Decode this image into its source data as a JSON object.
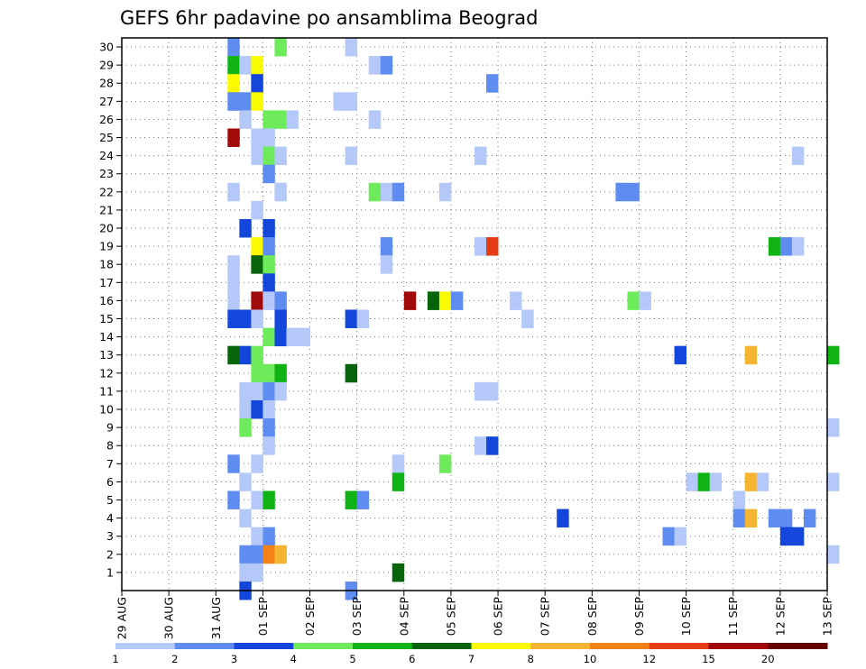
{
  "chart_data": {
    "type": "heatmap",
    "title": "GEFS 6hr padavine po ansamblima Beograd",
    "xlabel": "",
    "ylabel": "",
    "x_ticks": [
      "29 AUG",
      "30 AUG",
      "31 AUG",
      "01 SEP",
      "02 SEP",
      "03 SEP",
      "04 SEP",
      "05 SEP",
      "06 SEP",
      "07 SEP",
      "08 SEP",
      "09 SEP",
      "10 SEP",
      "11 SEP",
      "12 SEP",
      "13 SEP"
    ],
    "y_ticks": [
      "1",
      "2",
      "3",
      "4",
      "5",
      "6",
      "7",
      "8",
      "9",
      "10",
      "11",
      "12",
      "13",
      "14",
      "15",
      "16",
      "17",
      "18",
      "19",
      "20",
      "21",
      "22",
      "23",
      "24",
      "25",
      "26",
      "27",
      "28",
      "29",
      "30"
    ],
    "x_range": [
      "29 AUG 00Z",
      "13 SEP 00Z"
    ],
    "y_range": [
      0,
      30
    ],
    "grid": "dotted",
    "colorbar_levels": [
      "1",
      "2",
      "3",
      "4",
      "5",
      "6",
      "7",
      "8",
      "10",
      "12",
      "15",
      "20"
    ],
    "colorbar_colors": [
      "#b4c8fa",
      "#5f8cf0",
      "#1446dc",
      "#6eeb5a",
      "#0fb414",
      "#06640a",
      "#fafa00",
      "#f5b432",
      "#f58214",
      "#e63c14",
      "#a00a0a",
      "#640000"
    ],
    "series_encoding": "cells = [day_offset_from_29_AUG_00Z, member, color_class]; color_class indexes colorbar_colors",
    "cells": [
      [
        2.25,
        30,
        1
      ],
      [
        3.25,
        30,
        3
      ],
      [
        4.75,
        30,
        0
      ],
      [
        2.25,
        29,
        4
      ],
      [
        2.5,
        29,
        0
      ],
      [
        2.75,
        29,
        6
      ],
      [
        5.25,
        29,
        0
      ],
      [
        5.5,
        29,
        1
      ],
      [
        2.25,
        28,
        6
      ],
      [
        2.75,
        28,
        2
      ],
      [
        7.75,
        28,
        1
      ],
      [
        2.25,
        27,
        1
      ],
      [
        2.5,
        27,
        1
      ],
      [
        2.75,
        27,
        6
      ],
      [
        4.5,
        27,
        0
      ],
      [
        4.75,
        27,
        0
      ],
      [
        2.5,
        26,
        0
      ],
      [
        3.0,
        26,
        3
      ],
      [
        3.25,
        26,
        3
      ],
      [
        3.5,
        26,
        0
      ],
      [
        5.25,
        26,
        0
      ],
      [
        2.25,
        25,
        10
      ],
      [
        2.75,
        25,
        0
      ],
      [
        3.0,
        25,
        0
      ],
      [
        2.75,
        24,
        0
      ],
      [
        3.0,
        24,
        3
      ],
      [
        3.25,
        24,
        0
      ],
      [
        4.75,
        24,
        0
      ],
      [
        7.5,
        24,
        0
      ],
      [
        14.25,
        24,
        0
      ],
      [
        3.0,
        23,
        1
      ],
      [
        2.25,
        22,
        0
      ],
      [
        3.25,
        22,
        0
      ],
      [
        5.25,
        22,
        3
      ],
      [
        5.5,
        22,
        0
      ],
      [
        5.75,
        22,
        1
      ],
      [
        6.75,
        22,
        0
      ],
      [
        10.5,
        22,
        1
      ],
      [
        10.75,
        22,
        1
      ],
      [
        2.75,
        21,
        0
      ],
      [
        2.5,
        20,
        2
      ],
      [
        3.0,
        20,
        2
      ],
      [
        2.75,
        19,
        6
      ],
      [
        3.0,
        19,
        1
      ],
      [
        5.5,
        19,
        1
      ],
      [
        7.5,
        19,
        0
      ],
      [
        7.75,
        19,
        9
      ],
      [
        13.75,
        19,
        4
      ],
      [
        14.0,
        19,
        1
      ],
      [
        14.25,
        19,
        0
      ],
      [
        2.25,
        18,
        0
      ],
      [
        2.75,
        18,
        5
      ],
      [
        3.0,
        18,
        3
      ],
      [
        5.5,
        18,
        0
      ],
      [
        2.25,
        17,
        0
      ],
      [
        3.0,
        17,
        2
      ],
      [
        2.25,
        16,
        0
      ],
      [
        2.75,
        16,
        10
      ],
      [
        3.0,
        16,
        0
      ],
      [
        3.25,
        16,
        1
      ],
      [
        6.0,
        16,
        10
      ],
      [
        6.5,
        16,
        5
      ],
      [
        6.75,
        16,
        6
      ],
      [
        7.0,
        16,
        1
      ],
      [
        8.25,
        16,
        0
      ],
      [
        10.75,
        16,
        3
      ],
      [
        11.0,
        16,
        0
      ],
      [
        2.25,
        15,
        2
      ],
      [
        2.5,
        15,
        2
      ],
      [
        2.75,
        15,
        0
      ],
      [
        3.25,
        15,
        2
      ],
      [
        4.75,
        15,
        2
      ],
      [
        5.0,
        15,
        0
      ],
      [
        8.5,
        15,
        0
      ],
      [
        3.0,
        14,
        3
      ],
      [
        3.25,
        14,
        2
      ],
      [
        3.5,
        14,
        0
      ],
      [
        3.75,
        14,
        0
      ],
      [
        2.25,
        13,
        5
      ],
      [
        2.5,
        13,
        2
      ],
      [
        2.75,
        13,
        3
      ],
      [
        11.75,
        13,
        2
      ],
      [
        13.25,
        13,
        7
      ],
      [
        15.0,
        13,
        4
      ],
      [
        2.75,
        12,
        3
      ],
      [
        3.0,
        12,
        3
      ],
      [
        3.25,
        12,
        4
      ],
      [
        4.75,
        12,
        5
      ],
      [
        2.5,
        11,
        0
      ],
      [
        2.75,
        11,
        0
      ],
      [
        3.0,
        11,
        1
      ],
      [
        3.25,
        11,
        0
      ],
      [
        7.5,
        11,
        0
      ],
      [
        7.75,
        11,
        0
      ],
      [
        2.5,
        10,
        0
      ],
      [
        2.75,
        10,
        2
      ],
      [
        3.0,
        10,
        0
      ],
      [
        2.5,
        9,
        3
      ],
      [
        3.0,
        9,
        1
      ],
      [
        15.0,
        9,
        0
      ],
      [
        3.0,
        8,
        0
      ],
      [
        7.5,
        8,
        0
      ],
      [
        7.75,
        8,
        2
      ],
      [
        2.25,
        7,
        1
      ],
      [
        2.75,
        7,
        0
      ],
      [
        5.75,
        7,
        0
      ],
      [
        6.75,
        7,
        3
      ],
      [
        2.5,
        6,
        0
      ],
      [
        5.75,
        6,
        4
      ],
      [
        12.0,
        6,
        0
      ],
      [
        12.25,
        6,
        4
      ],
      [
        12.5,
        6,
        0
      ],
      [
        13.25,
        6,
        7
      ],
      [
        13.5,
        6,
        0
      ],
      [
        15.0,
        6,
        0
      ],
      [
        2.25,
        5,
        1
      ],
      [
        2.75,
        5,
        0
      ],
      [
        3.0,
        5,
        4
      ],
      [
        4.75,
        5,
        4
      ],
      [
        5.0,
        5,
        1
      ],
      [
        13.0,
        5,
        0
      ],
      [
        2.5,
        4,
        0
      ],
      [
        9.25,
        4,
        2
      ],
      [
        13.0,
        4,
        1
      ],
      [
        13.25,
        4,
        7
      ],
      [
        13.75,
        4,
        1
      ],
      [
        14.0,
        4,
        1
      ],
      [
        14.5,
        4,
        1
      ],
      [
        2.75,
        3,
        0
      ],
      [
        3.0,
        3,
        1
      ],
      [
        11.5,
        3,
        1
      ],
      [
        11.75,
        3,
        0
      ],
      [
        14.0,
        3,
        2
      ],
      [
        14.25,
        3,
        2
      ],
      [
        2.5,
        2,
        1
      ],
      [
        2.75,
        2,
        1
      ],
      [
        3.0,
        2,
        8
      ],
      [
        3.25,
        2,
        7
      ],
      [
        15.0,
        2,
        0
      ],
      [
        2.5,
        1,
        0
      ],
      [
        2.75,
        1,
        0
      ],
      [
        5.75,
        1,
        5
      ],
      [
        2.5,
        0,
        2
      ],
      [
        4.75,
        0,
        1
      ]
    ]
  }
}
